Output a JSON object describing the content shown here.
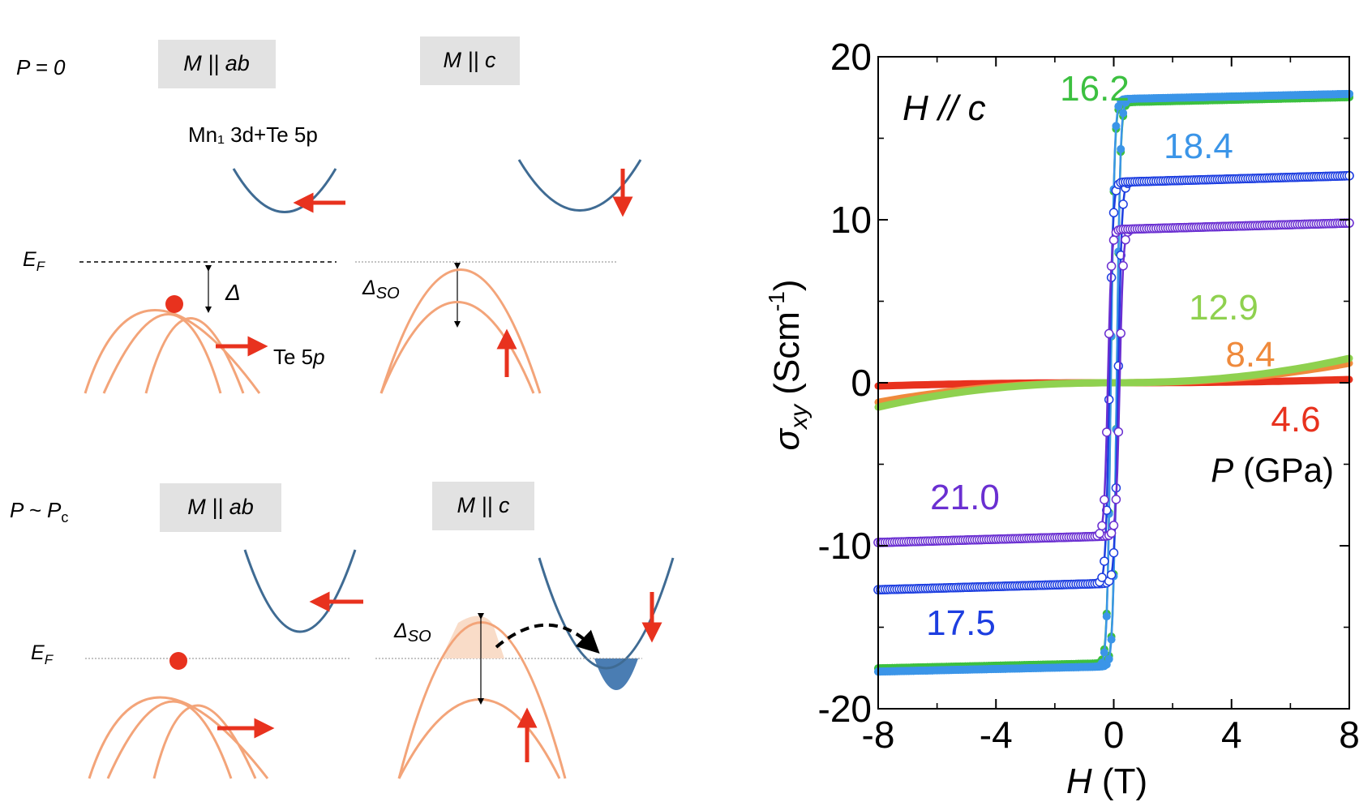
{
  "schematic": {
    "row_top": {
      "condition": "P = 0",
      "panel_ab": {
        "box_label": "M || ab",
        "conduction_label": "Mn₁ 3d+Te 5p",
        "fermi_label": "EF",
        "gap_label": "Δ",
        "valence_label": "Te 5p"
      },
      "panel_c": {
        "box_label": "M || c",
        "gap_label": "ΔSO"
      }
    },
    "row_bottom": {
      "condition": "P ~ Pc",
      "panel_ab": {
        "box_label": "M || ab",
        "fermi_label": "EF"
      },
      "panel_c": {
        "box_label": "M || c",
        "gap_label": "ΔSO"
      }
    },
    "colors": {
      "valence": "#f3a479",
      "conduction": "#3f6b93",
      "arrow": "#e8321e",
      "box": "#e2e2e2",
      "hole_fill": "#f9dcc8",
      "electron_fill": "#4a7db3"
    }
  },
  "chart_data": {
    "type": "line",
    "xlabel": "H (T)",
    "ylabel": "σxy (Scm-1)",
    "xlim": [
      -8,
      8
    ],
    "ylim": [
      -20,
      20
    ],
    "xticks": [
      "-8",
      "-4",
      "0",
      "4",
      "8"
    ],
    "yticks": [
      "-20",
      "-10",
      "0",
      "10",
      "20"
    ],
    "annotation": "H // c",
    "legend_title": "P (GPa)",
    "grid": false,
    "series": [
      {
        "name": "4.6",
        "color": "#e8321e",
        "style": "line",
        "saturation": 0,
        "endpoints": [
          -0.2,
          0.2
        ]
      },
      {
        "name": "8.4",
        "color": "#ef8a3c",
        "style": "line",
        "saturation": 0,
        "endpoints": [
          -1.2,
          1.2
        ]
      },
      {
        "name": "12.9",
        "color": "#8fd14f",
        "style": "line",
        "saturation": 0,
        "endpoints": [
          -1.5,
          1.5
        ]
      },
      {
        "name": "16.2",
        "color": "#3cc040",
        "style": "filled",
        "saturation": 17.2,
        "coercive": 0.1
      },
      {
        "name": "18.4",
        "color": "#3b95e8",
        "style": "filled",
        "saturation": 17.4,
        "coercive": 0.1
      },
      {
        "name": "17.5",
        "color": "#1d3ee0",
        "style": "open",
        "saturation": 12.3,
        "coercive": 0.15
      },
      {
        "name": "21.0",
        "color": "#6a2fd1",
        "style": "open",
        "saturation": 9.4,
        "coercive": 0.2
      }
    ]
  }
}
